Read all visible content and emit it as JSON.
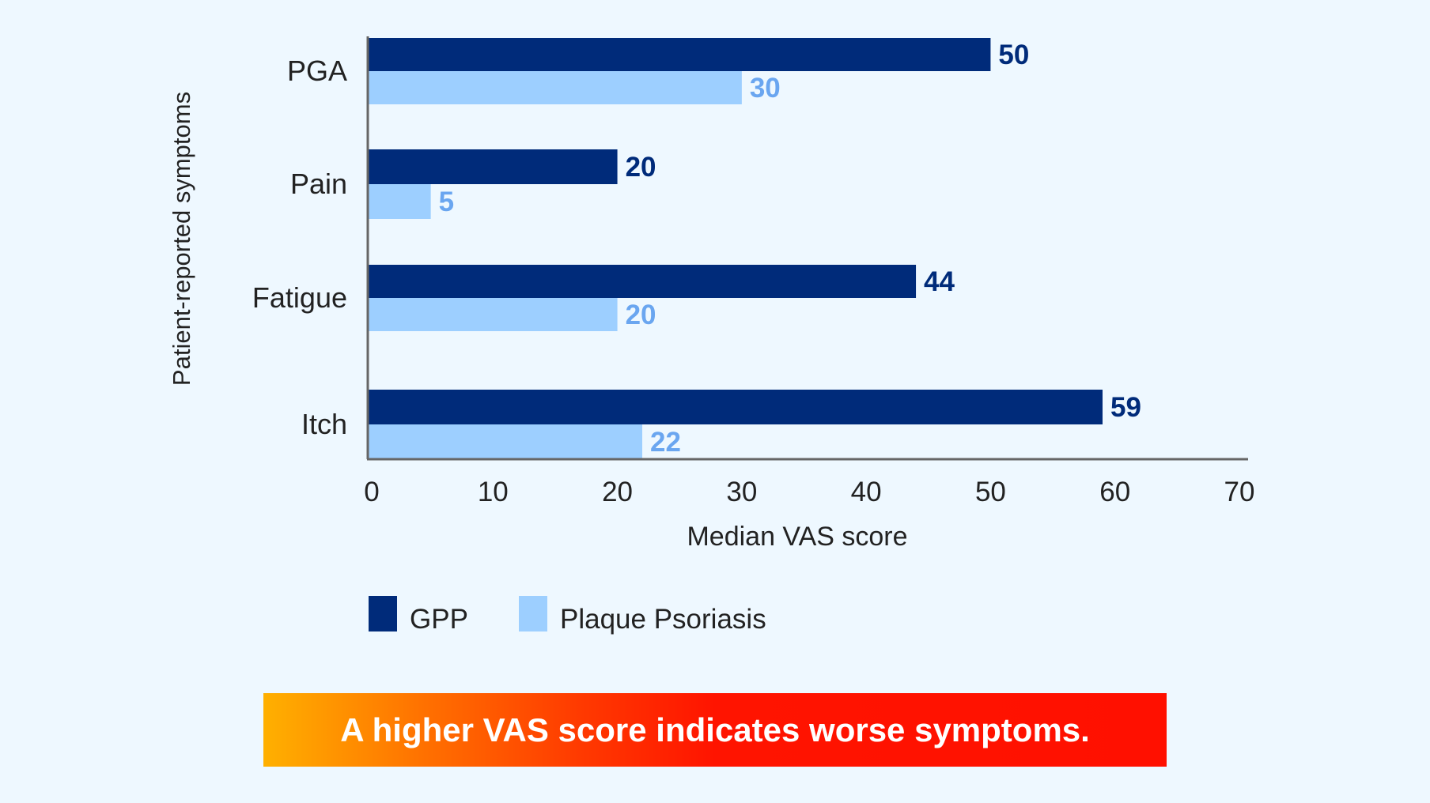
{
  "chart_data": {
    "type": "bar",
    "orientation": "horizontal",
    "categories": [
      "PGA",
      "Pain",
      "Fatigue",
      "Itch"
    ],
    "series": [
      {
        "name": "GPP",
        "values": [
          50,
          20,
          44,
          59
        ],
        "color": "#002b7a",
        "label_color": "#002b7a"
      },
      {
        "name": "Plaque Psoriasis",
        "values": [
          30,
          5,
          20,
          22
        ],
        "color": "#9dcfff",
        "label_color": "#6aa6f0"
      }
    ],
    "xlabel": "Median VAS score",
    "ylabel": "Patient-reported symptoms",
    "xlim": [
      0,
      70
    ],
    "xticks": [
      0,
      10,
      20,
      30,
      40,
      50,
      60,
      70
    ],
    "grid": false,
    "legend": "bottom"
  },
  "banner": {
    "text": "A higher VAS score indicates worse symptoms."
  },
  "colors": {
    "background": "#eef8ff",
    "axis": "#666666"
  }
}
